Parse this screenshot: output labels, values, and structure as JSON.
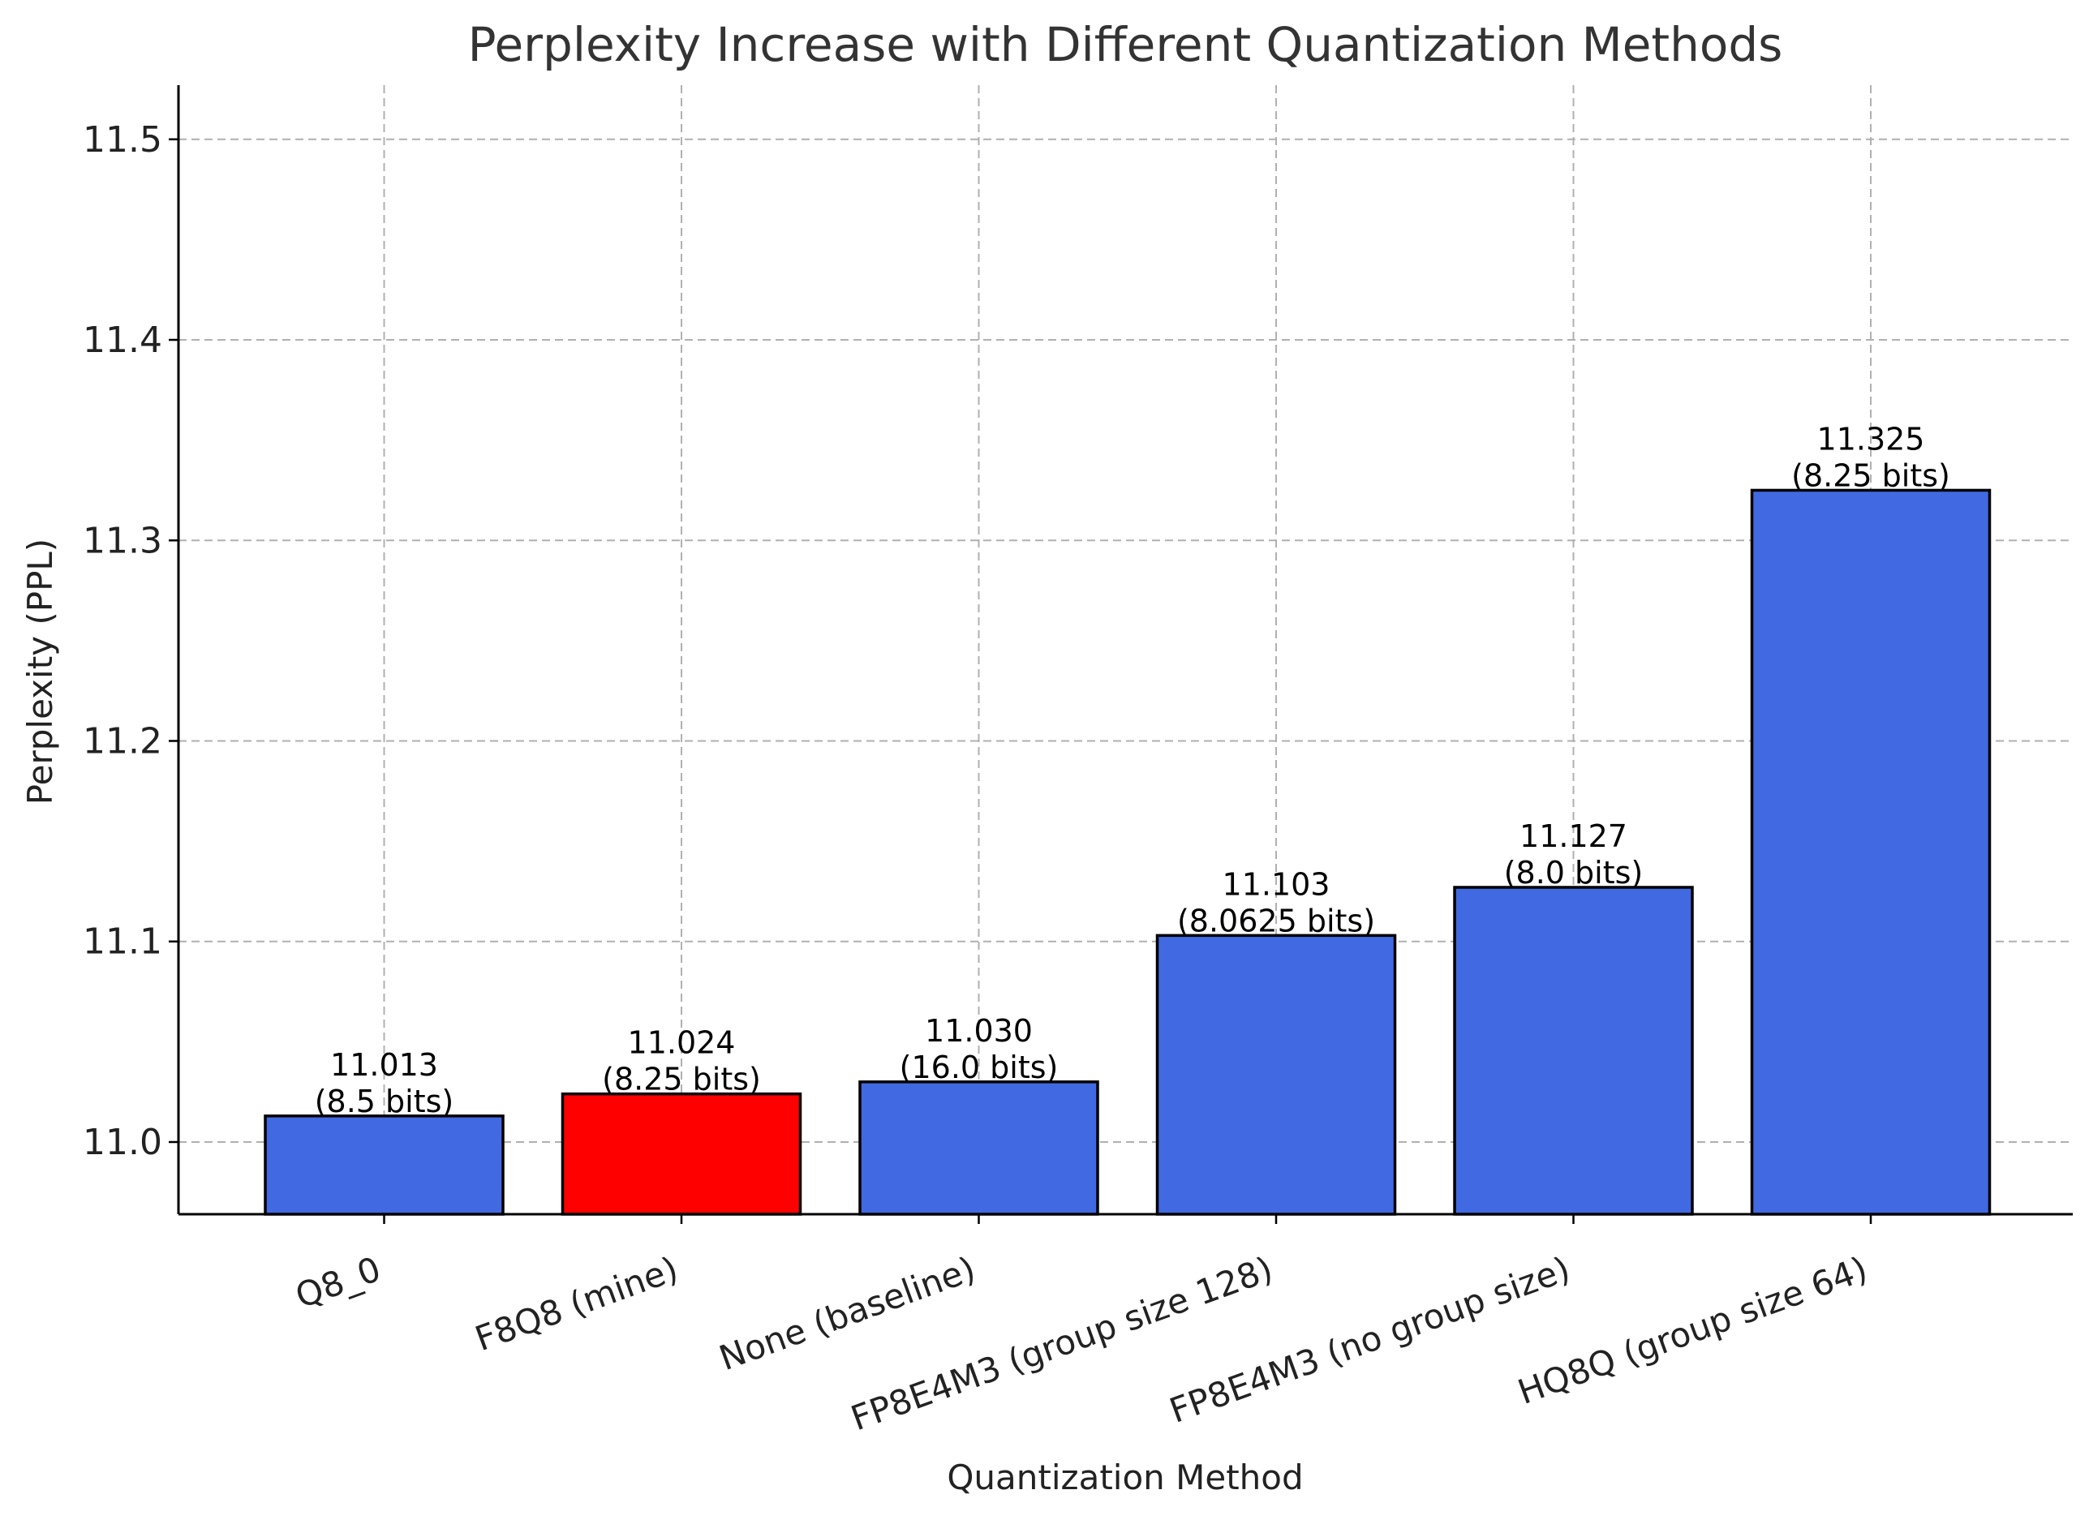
{
  "chart_data": {
    "type": "bar",
    "title": "Perplexity Increase with Different Quantization Methods",
    "xlabel": "Quantization Method",
    "ylabel": "Perplexity (PPL)",
    "categories": [
      "Q8_0",
      "F8Q8 (mine)",
      "None (baseline)",
      "FP8E4M3 (group size 128)",
      "FP8E4M3 (no group size)",
      "HQ8Q (group size 64)"
    ],
    "values": [
      11.013,
      11.024,
      11.03,
      11.103,
      11.127,
      11.325
    ],
    "value_labels": [
      "11.013",
      "11.024",
      "11.030",
      "11.103",
      "11.127",
      "11.325"
    ],
    "bits_labels": [
      "(8.5 bits)",
      "(8.25 bits)",
      "(16.0 bits)",
      "(8.0625 bits)",
      "(8.0 bits)",
      "(8.25 bits)"
    ],
    "bar_colors": [
      "#4169e1",
      "#ff0000",
      "#4169e1",
      "#4169e1",
      "#4169e1",
      "#4169e1"
    ],
    "edge_color": "#000000",
    "ylim": [
      10.964,
      11.527
    ],
    "yticks": [
      11.0,
      11.1,
      11.2,
      11.3,
      11.4,
      11.5
    ],
    "ytick_labels": [
      "11.0",
      "11.1",
      "11.2",
      "11.3",
      "11.4",
      "11.5"
    ],
    "grid": true,
    "legend": "none"
  }
}
